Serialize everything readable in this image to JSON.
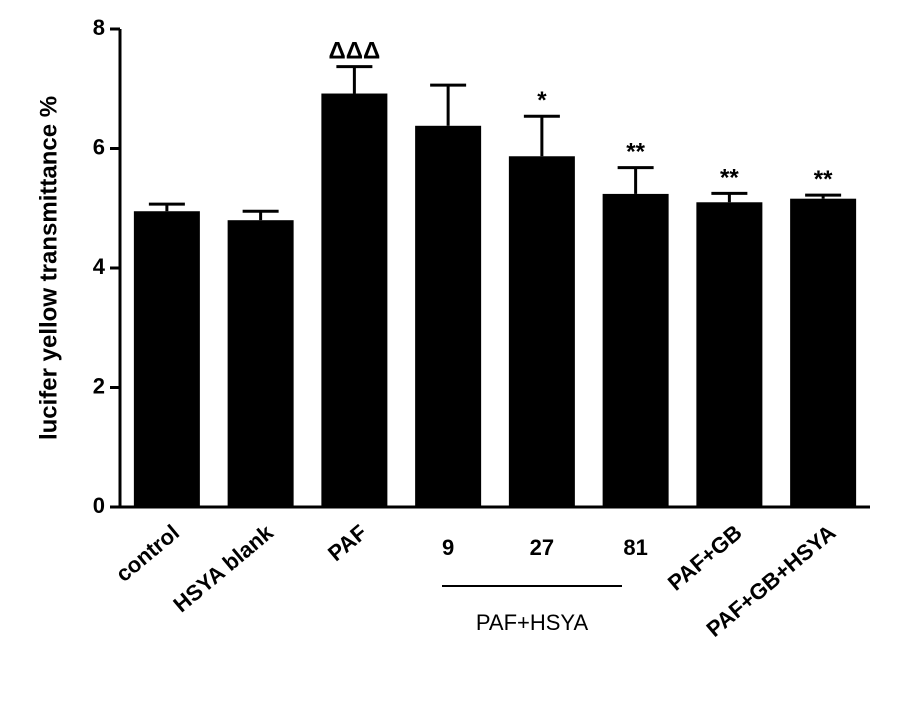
{
  "chart_data": {
    "type": "bar",
    "ylabel": "lucifer yellow transmittance %",
    "ylim": [
      0,
      8
    ],
    "yticks": [
      "0",
      "2",
      "4",
      "6",
      "8"
    ],
    "categories": [
      "control",
      "HSYA blank",
      "PAF",
      "9",
      "27",
      "81",
      "PAF+GB",
      "PAF+GB+HSYA"
    ],
    "values": [
      4.95,
      4.8,
      6.92,
      6.38,
      5.87,
      5.24,
      5.1,
      5.16
    ],
    "errors": [
      0.12,
      0.15,
      0.45,
      0.68,
      0.67,
      0.44,
      0.15,
      0.06
    ],
    "annotations": [
      "",
      "",
      "ΔΔΔ",
      "",
      "*",
      "**",
      "**",
      "**"
    ],
    "group_label": "PAF+HSYA",
    "bar_color": "#000000"
  }
}
